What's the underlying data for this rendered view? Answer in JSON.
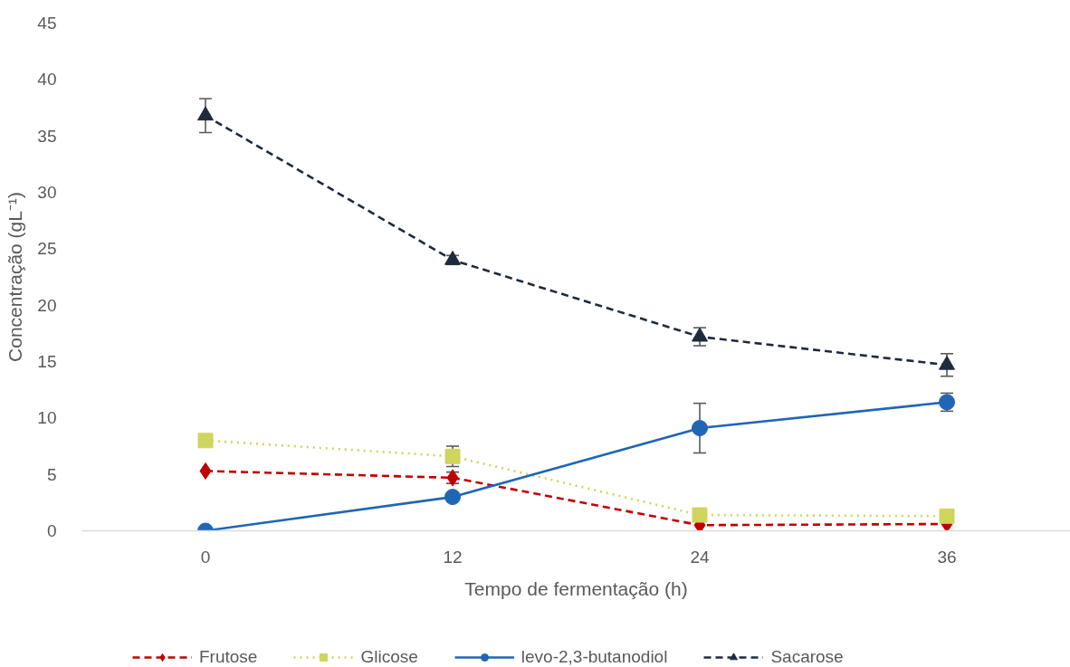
{
  "chart_data": {
    "type": "line",
    "xlabel": "Tempo de fermentação (h)",
    "ylabel": "Concentração (gL⁻¹)",
    "categories": [
      "0",
      "12",
      "24",
      "36"
    ],
    "ylim": [
      0,
      45
    ],
    "yticks": [
      0,
      5,
      10,
      15,
      20,
      25,
      30,
      35,
      40,
      45
    ],
    "grid": false,
    "legend": "bottom",
    "series": [
      {
        "name": "Frutose",
        "color": "#c00000",
        "marker": "diamond",
        "line_style": "dashed",
        "values": [
          5.3,
          4.7,
          0.5,
          0.6
        ],
        "errors": [
          null,
          0.5,
          null,
          null
        ]
      },
      {
        "name": "Glicose",
        "color": "#cfd55d",
        "marker": "square",
        "line_style": "dotted",
        "values": [
          8.0,
          6.6,
          1.4,
          1.3
        ],
        "errors": [
          null,
          0.9,
          null,
          null
        ]
      },
      {
        "name": "levo-2,3-butanodiol",
        "color": "#1f66b5",
        "marker": "circle",
        "line_style": "solid",
        "values": [
          0,
          3.0,
          9.1,
          11.4
        ],
        "errors": [
          null,
          null,
          2.2,
          0.8
        ]
      },
      {
        "name": "Sacarose",
        "color": "#1f2a3c",
        "marker": "triangle",
        "line_style": "dashed",
        "values": [
          36.8,
          24.0,
          17.2,
          14.7
        ],
        "errors": [
          1.5,
          0.4,
          0.8,
          1.0
        ]
      }
    ]
  }
}
